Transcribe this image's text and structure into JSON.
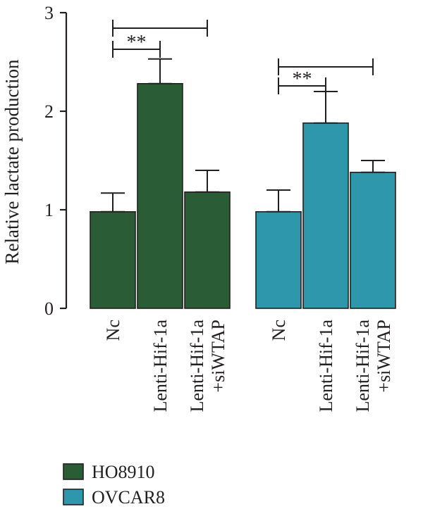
{
  "chart_data": {
    "type": "bar",
    "title": "",
    "xlabel": "",
    "ylabel": "Relative lactate production",
    "ylim": [
      0,
      3
    ],
    "yticks": [
      "0",
      "1",
      "2",
      "3"
    ],
    "grid": false,
    "legend_position": "bottom-left",
    "categories": [
      "Nc",
      "Lenti-Hif-1a",
      "Lenti-Hif-1a\n+siWTAP"
    ],
    "series": [
      {
        "name": "HO8910",
        "color": "#2a5c36",
        "values": [
          0.98,
          2.28,
          1.18
        ],
        "errors": [
          0.19,
          0.25,
          0.22
        ]
      },
      {
        "name": "OVCAR8",
        "color": "#2e97ac",
        "values": [
          0.98,
          1.88,
          1.38
        ],
        "errors": [
          0.22,
          0.32,
          0.12
        ]
      }
    ],
    "annotations": [
      {
        "series": 0,
        "from": 0,
        "to": 1,
        "text": "**"
      },
      {
        "series": 0,
        "from": 0,
        "to": 2,
        "text": ""
      },
      {
        "series": 1,
        "from": 0,
        "to": 1,
        "text": "**"
      },
      {
        "series": 1,
        "from": 0,
        "to": 2,
        "text": ""
      }
    ]
  }
}
